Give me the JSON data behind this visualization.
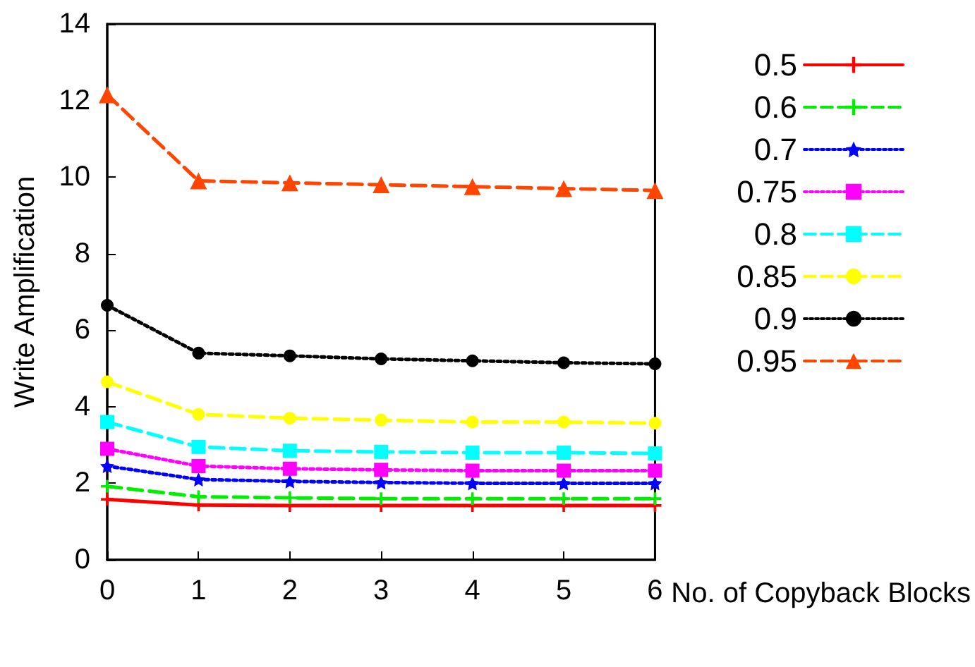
{
  "chart_data": {
    "type": "line",
    "xlabel": "No. of Copyback Blocks",
    "ylabel": "Write Amplification",
    "x": [
      0,
      1,
      2,
      3,
      4,
      5,
      6
    ],
    "xlim": [
      0,
      6
    ],
    "xticks": [
      0,
      1,
      2,
      3,
      4,
      5,
      6
    ],
    "ylim": [
      0,
      14
    ],
    "yticks": [
      0,
      2,
      4,
      6,
      8,
      10,
      12,
      14
    ],
    "grid": false,
    "legend": "top right",
    "series": [
      {
        "name": "0.5",
        "color": "#ff0000",
        "marker": "cross",
        "line_style": "solid",
        "values": [
          1.58,
          1.43,
          1.42,
          1.42,
          1.42,
          1.42,
          1.42
        ]
      },
      {
        "name": "0.6",
        "color": "#00ee00",
        "marker": "cross",
        "line_style": "dashed",
        "values": [
          1.92,
          1.65,
          1.62,
          1.6,
          1.6,
          1.6,
          1.6
        ]
      },
      {
        "name": "0.7",
        "color": "#0000ff",
        "marker": "star",
        "line_style": "dotted",
        "values": [
          2.45,
          2.1,
          2.05,
          2.02,
          2.0,
          2.0,
          2.0
        ]
      },
      {
        "name": "0.75",
        "color": "#ff00ff",
        "marker": "square",
        "line_style": "dotted",
        "values": [
          2.9,
          2.45,
          2.38,
          2.35,
          2.33,
          2.33,
          2.33
        ]
      },
      {
        "name": "0.8",
        "color": "#00ffff",
        "marker": "square",
        "line_style": "dashed",
        "values": [
          3.6,
          2.95,
          2.85,
          2.82,
          2.8,
          2.8,
          2.78
        ]
      },
      {
        "name": "0.85",
        "color": "#ffff00",
        "marker": "circle",
        "line_style": "dashed",
        "values": [
          4.65,
          3.8,
          3.7,
          3.65,
          3.6,
          3.6,
          3.57
        ]
      },
      {
        "name": "0.9",
        "color": "#000000",
        "marker": "circle",
        "line_style": "dotted",
        "values": [
          6.65,
          5.4,
          5.33,
          5.25,
          5.2,
          5.15,
          5.12
        ]
      },
      {
        "name": "0.95",
        "color": "#ff4500",
        "marker": "triangle",
        "line_style": "dashed",
        "values": [
          12.15,
          9.9,
          9.85,
          9.8,
          9.75,
          9.7,
          9.65
        ]
      }
    ]
  }
}
